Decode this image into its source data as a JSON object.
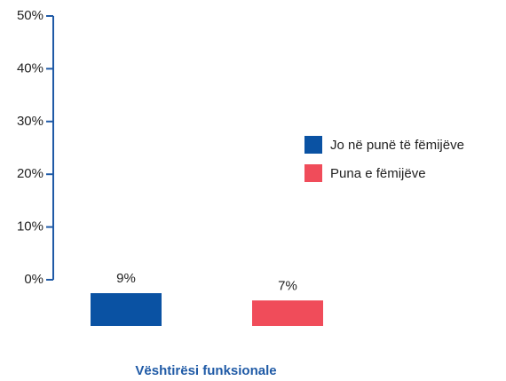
{
  "chart_data": {
    "type": "bar",
    "categories": [
      "Vështirësi funksionale"
    ],
    "series": [
      {
        "name": "Jo në punë të fëmijëve",
        "color": "#0a52a3",
        "values": [
          9
        ],
        "value_labels": [
          "9%"
        ]
      },
      {
        "name": "Puna e fëmijëve",
        "color": "#f04c5a",
        "values": [
          7
        ],
        "value_labels": [
          "7%"
        ]
      }
    ],
    "ylim": [
      0,
      50
    ],
    "yticks": [
      {
        "value": 0,
        "label": "0%"
      },
      {
        "value": 10,
        "label": "10%"
      },
      {
        "value": 20,
        "label": "20%"
      },
      {
        "value": 30,
        "label": "30%"
      },
      {
        "value": 40,
        "label": "40%"
      },
      {
        "value": 50,
        "label": "50%"
      }
    ],
    "legend": "right"
  }
}
